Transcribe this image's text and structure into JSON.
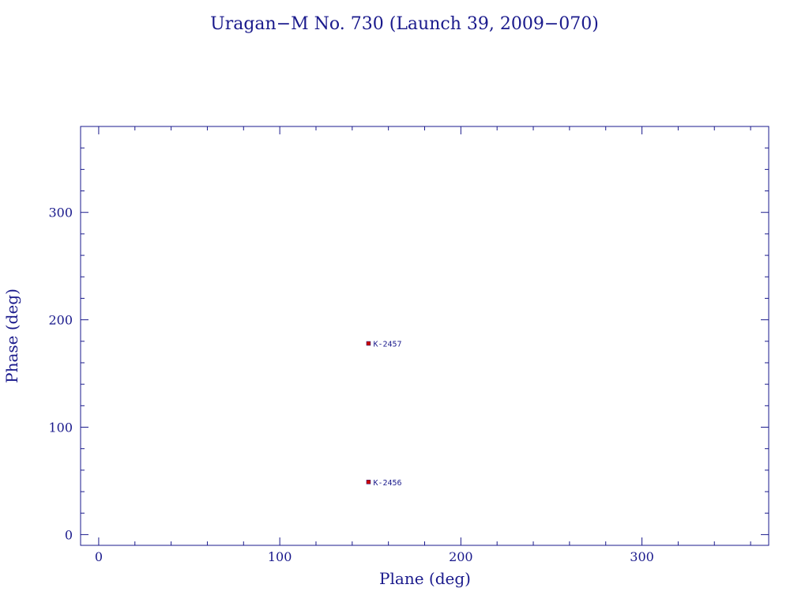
{
  "chart_data": {
    "type": "scatter",
    "title": "Uragan−M No. 730 (Launch 39, 2009−070)",
    "xlabel": "Plane (deg)",
    "ylabel": "Phase (deg)",
    "xlim": [
      -10,
      370
    ],
    "ylim": [
      -10,
      380
    ],
    "xticks": [
      0,
      100,
      200,
      300
    ],
    "yticks": [
      0,
      100,
      200,
      300
    ],
    "minor_step": 20,
    "grid": false,
    "colors": {
      "axis": "#1a1a8c",
      "marker": "#cc0000",
      "text": "#1a1a8c"
    },
    "points": [
      {
        "x": 149,
        "y": 178,
        "label": "K-2457"
      },
      {
        "x": 149,
        "y": 49,
        "label": "K-2456"
      }
    ]
  }
}
